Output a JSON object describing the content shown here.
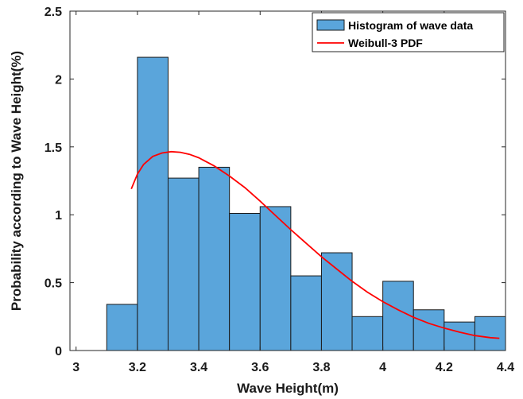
{
  "chart_data": {
    "type": "bar",
    "xlabel": "Wave Height(m)",
    "ylabel": "Probability according to Wave Height(%)",
    "xlim": [
      2.98,
      4.4
    ],
    "ylim": [
      0,
      2.5
    ],
    "xticks": [
      3,
      3.2,
      3.4,
      3.6,
      3.8,
      4,
      4.2,
      4.4
    ],
    "xtick_labels": [
      "3",
      "3.2",
      "3.4",
      "3.6",
      "3.8",
      "4",
      "4.2",
      "4.4"
    ],
    "yticks": [
      0,
      0.5,
      1,
      1.5,
      2,
      2.5
    ],
    "ytick_labels": [
      "0",
      "0.5",
      "1",
      "1.5",
      "2",
      "2.5"
    ],
    "legend_position": "top-right",
    "histogram": {
      "name": "Histogram of wave data",
      "color": "#5aa5db",
      "edge_color": "#1a1a1a",
      "bins": [
        {
          "x0": 3.1,
          "x1": 3.2,
          "value": 0.34
        },
        {
          "x0": 3.2,
          "x1": 3.3,
          "value": 2.16
        },
        {
          "x0": 3.3,
          "x1": 3.4,
          "value": 1.27
        },
        {
          "x0": 3.4,
          "x1": 3.5,
          "value": 1.35
        },
        {
          "x0": 3.5,
          "x1": 3.6,
          "value": 1.01
        },
        {
          "x0": 3.6,
          "x1": 3.7,
          "value": 1.06
        },
        {
          "x0": 3.7,
          "x1": 3.8,
          "value": 0.55
        },
        {
          "x0": 3.8,
          "x1": 3.9,
          "value": 0.72
        },
        {
          "x0": 3.9,
          "x1": 4.0,
          "value": 0.25
        },
        {
          "x0": 4.0,
          "x1": 4.1,
          "value": 0.51
        },
        {
          "x0": 4.1,
          "x1": 4.2,
          "value": 0.3
        },
        {
          "x0": 4.2,
          "x1": 4.3,
          "value": 0.21
        },
        {
          "x0": 4.3,
          "x1": 4.4,
          "value": 0.25
        }
      ]
    },
    "curve": {
      "name": "Weibull-3 PDF",
      "color": "#ff0000",
      "x": [
        3.18,
        3.2,
        3.22,
        3.25,
        3.28,
        3.31,
        3.34,
        3.37,
        3.4,
        3.45,
        3.5,
        3.55,
        3.6,
        3.65,
        3.7,
        3.75,
        3.8,
        3.85,
        3.9,
        3.95,
        4.0,
        4.05,
        4.1,
        4.15,
        4.2,
        4.25,
        4.3,
        4.35,
        4.38
      ],
      "y": [
        1.19,
        1.3,
        1.37,
        1.43,
        1.455,
        1.465,
        1.46,
        1.445,
        1.42,
        1.36,
        1.285,
        1.2,
        1.1,
        0.995,
        0.89,
        0.79,
        0.69,
        0.6,
        0.51,
        0.43,
        0.36,
        0.3,
        0.245,
        0.2,
        0.165,
        0.135,
        0.11,
        0.095,
        0.09
      ]
    }
  }
}
